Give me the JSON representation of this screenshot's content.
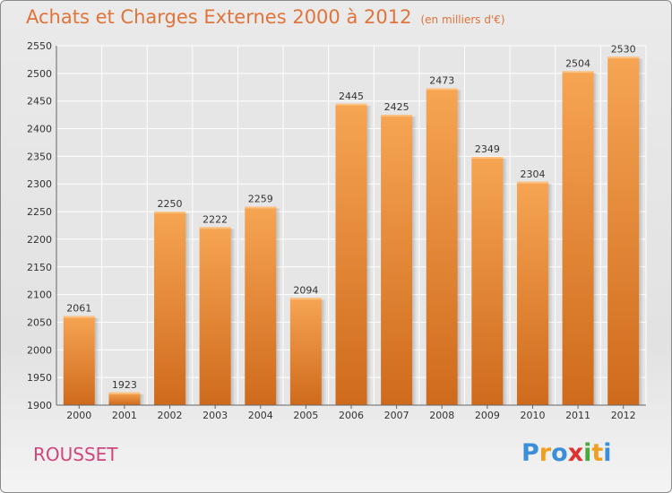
{
  "title": "Achats et Charges Externes 2000 à 2012",
  "subtitle": "(en milliers d'€)",
  "commune": "ROUSSET",
  "logo": {
    "letters": [
      "P",
      "r",
      "o",
      "x",
      "i",
      "t",
      "i"
    ]
  },
  "colors": {
    "bar": "#f0953f",
    "bar_dark": "#cf6a1c",
    "title": "#e0743a",
    "commune": "#d0467a"
  },
  "chart_data": {
    "type": "bar",
    "title": "Achats et Charges Externes 2000 à 2012",
    "subtitle": "(en milliers d'€)",
    "xlabel": "",
    "ylabel": "",
    "categories": [
      "2000",
      "2001",
      "2002",
      "2003",
      "2004",
      "2005",
      "2006",
      "2007",
      "2008",
      "2009",
      "2010",
      "2011",
      "2012"
    ],
    "values": [
      2061,
      1923,
      2250,
      2222,
      2259,
      2094,
      2445,
      2425,
      2473,
      2349,
      2304,
      2504,
      2530
    ],
    "ylim": [
      1900,
      2550
    ],
    "yticks": [
      1900,
      1950,
      2000,
      2050,
      2100,
      2150,
      2200,
      2250,
      2300,
      2350,
      2400,
      2450,
      2500,
      2550
    ],
    "grid": true,
    "data_labels": true
  }
}
